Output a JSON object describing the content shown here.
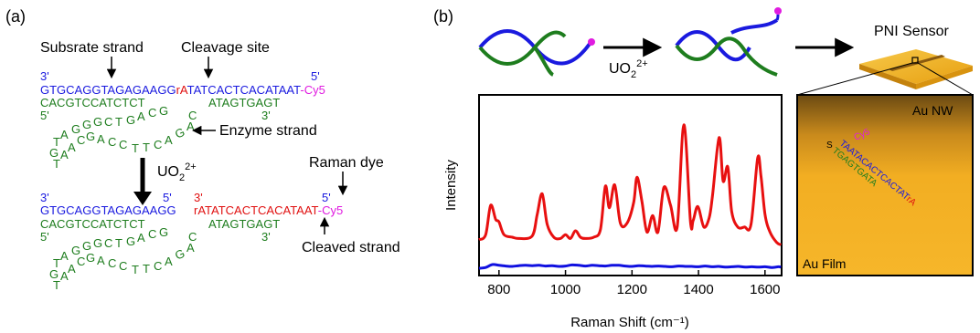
{
  "colors": {
    "substrate": "#1a1adf",
    "enzyme": "#1e7d1e",
    "cleavage": "#e01010",
    "dye": "#e01be0",
    "spectrum_on": "#e81010",
    "spectrum_off": "#1010e0",
    "gold": "#f2b21c"
  },
  "panel_a": {
    "label": "(a)",
    "substrate_label": "Subsrate strand",
    "cleavage_label": "Cleavage site",
    "enzyme_label": "Enzyme strand",
    "dye_label": "Raman dye",
    "cleaved_label": "Cleaved strand",
    "ion": "UO",
    "ion_sub": "2",
    "ion_sup": "2+",
    "top": {
      "end3_left": "3'",
      "end5_right": "5'",
      "substrate_seq": "GTGCAGGTAGAGAAGG",
      "cleavage_base": "rA",
      "substrate_rest": "TATCACTCACATAAT",
      "dye": "-Cy5",
      "enzyme_left": "CACGTCCATCTCT",
      "enzyme_right": "ATAGTGAGT",
      "end5_left": "5'",
      "end3_right": "3'"
    },
    "bottom": {
      "end3_left": "3'",
      "end5_mid": "5'",
      "end3_mid": "3'",
      "end5_right": "5'",
      "substrate_seq": "GTGCAGGTAGAGAAGG",
      "cleaved_seq": "rATATCACTCACATAAT",
      "dye": "-Cy5",
      "enzyme_left": "CACGTCCATCTCT",
      "enzyme_right": "ATAGTGAGT",
      "end5_left": "5'",
      "end3_right": "3'"
    }
  },
  "panel_b": {
    "label": "(b)",
    "ion": "UO",
    "ion_sub": "2",
    "ion_sup": "2+",
    "sensor_label": "PNI Sensor",
    "au_nw": "Au NW",
    "au_film": "Au Film",
    "inset_s": "S",
    "inset_cy5": "Cy5",
    "inset_blue_seq": "TAATACACTCACTAT",
    "inset_red": "rA",
    "inset_green_seq": "TGAGTGATA"
  },
  "chart_data": {
    "type": "line",
    "title": "",
    "xlabel": "Raman Shift (cm⁻¹)",
    "ylabel": "Intensity",
    "xlim": [
      740,
      1650
    ],
    "xticks": [
      "800",
      "1000",
      "1200",
      "1400",
      "1600"
    ],
    "grid": false,
    "series": [
      {
        "color": "red",
        "x": [
          740,
          760,
          775,
          790,
          800,
          815,
          840,
          860,
          900,
          915,
          930,
          945,
          965,
          985,
          1000,
          1015,
          1030,
          1045,
          1060,
          1085,
          1105,
          1120,
          1132,
          1148,
          1165,
          1185,
          1205,
          1215,
          1230,
          1245,
          1262,
          1278,
          1296,
          1316,
          1336,
          1356,
          1376,
          1384,
          1398,
          1416,
          1432,
          1442,
          1462,
          1474,
          1488,
          1500,
          1518,
          1538,
          1558,
          1578,
          1588,
          1600,
          1615,
          1635,
          1648
        ],
        "values": [
          0.08,
          0.12,
          0.35,
          0.24,
          0.22,
          0.12,
          0.1,
          0.09,
          0.11,
          0.28,
          0.44,
          0.2,
          0.1,
          0.09,
          0.12,
          0.09,
          0.15,
          0.1,
          0.09,
          0.1,
          0.16,
          0.5,
          0.33,
          0.51,
          0.21,
          0.21,
          0.37,
          0.57,
          0.38,
          0.14,
          0.27,
          0.14,
          0.49,
          0.35,
          0.18,
          0.98,
          0.22,
          0.23,
          0.34,
          0.18,
          0.25,
          0.42,
          0.88,
          0.54,
          0.65,
          0.3,
          0.18,
          0.18,
          0.2,
          0.72,
          0.58,
          0.28,
          0.14,
          0.06,
          0.04
        ]
      },
      {
        "color": "blue",
        "x": [
          740,
          760,
          780,
          800,
          820,
          840,
          860,
          880,
          900,
          920,
          940,
          960,
          980,
          1000,
          1020,
          1040,
          1060,
          1080,
          1100,
          1120,
          1140,
          1160,
          1180,
          1200,
          1220,
          1240,
          1260,
          1280,
          1300,
          1320,
          1340,
          1360,
          1380,
          1400,
          1420,
          1440,
          1460,
          1480,
          1500,
          1520,
          1540,
          1560,
          1580,
          1600,
          1620,
          1640,
          1648
        ],
        "values": [
          0.0,
          0.01,
          0.05,
          0.04,
          0.03,
          0.025,
          0.035,
          0.04,
          0.035,
          0.04,
          0.03,
          0.035,
          0.025,
          0.03,
          0.045,
          0.04,
          0.03,
          0.04,
          0.035,
          0.03,
          0.04,
          0.04,
          0.03,
          0.025,
          0.035,
          0.03,
          0.025,
          0.03,
          0.025,
          0.02,
          0.03,
          0.025,
          0.025,
          0.02,
          0.03,
          0.02,
          0.025,
          0.015,
          0.02,
          0.025,
          0.015,
          0.02,
          0.015,
          0.02,
          0.01,
          0.02,
          0.015
        ]
      }
    ]
  }
}
